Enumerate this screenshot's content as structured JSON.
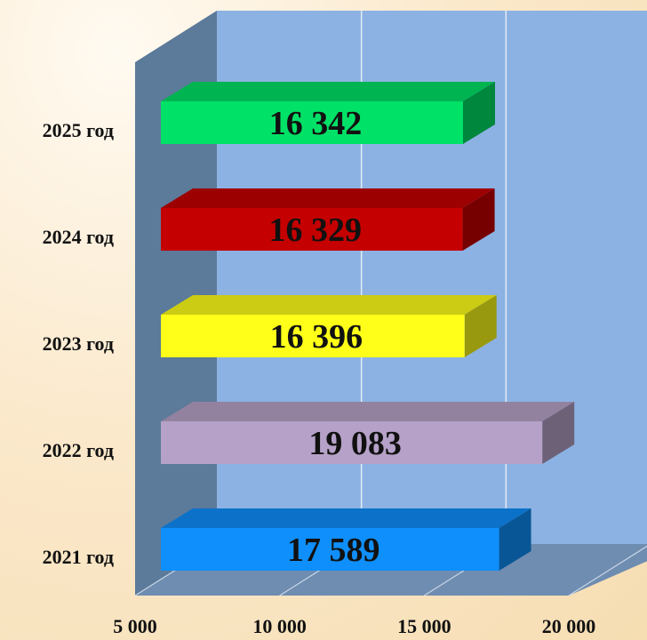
{
  "chart_data": {
    "type": "bar",
    "orientation": "horizontal",
    "style": "3d",
    "categories": [
      "2021 год",
      "2022 год",
      "2023 год",
      "2024 год",
      "2025 год"
    ],
    "values": [
      17589,
      19083,
      16396,
      16329,
      16342
    ],
    "value_labels": [
      "17 589",
      "19 083",
      "16 396",
      "16 329",
      "16 342"
    ],
    "bar_colors": [
      "#0f8ffb",
      "#b6a2c8",
      "#ffff19",
      "#c40000",
      "#00e167"
    ],
    "xlim": [
      5000,
      20000
    ],
    "x_ticks": [
      5000,
      10000,
      15000,
      20000
    ],
    "x_tick_labels": [
      "5 000",
      "10 000",
      "15 000",
      "20 000"
    ],
    "grid": true,
    "legend": "none"
  }
}
